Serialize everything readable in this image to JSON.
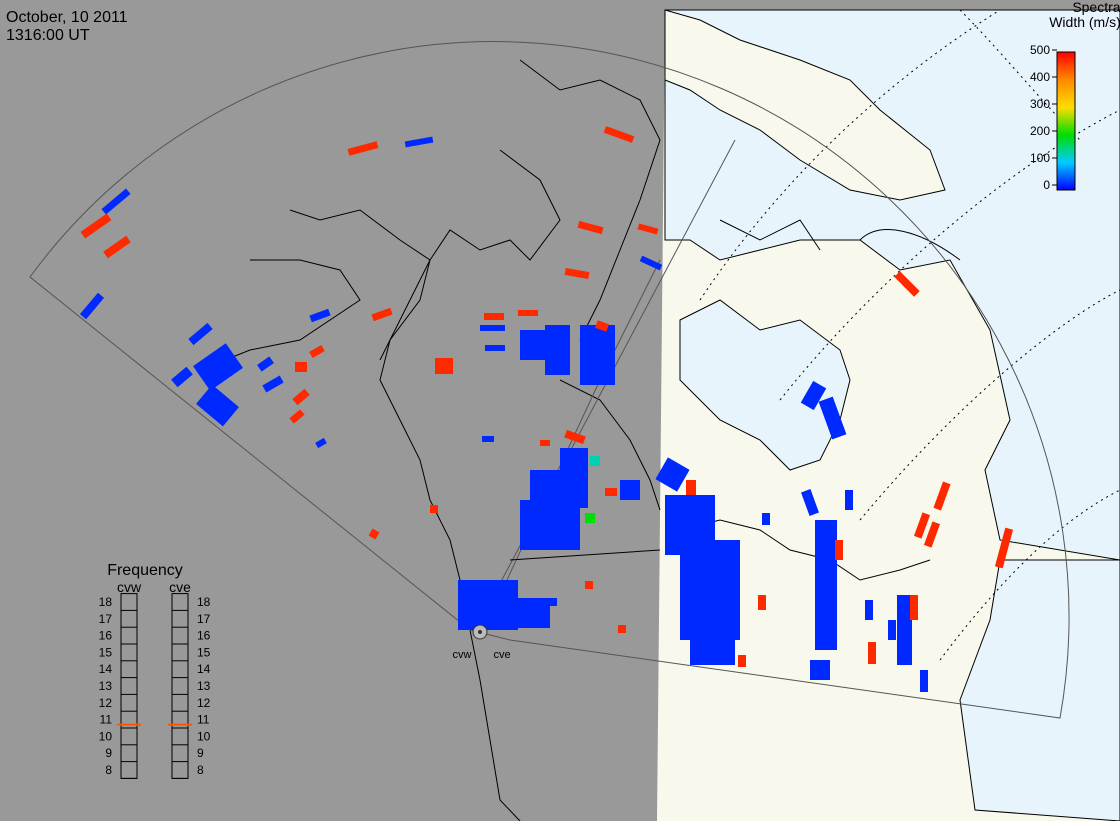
{
  "header": {
    "date": "October, 10 2011",
    "time": "1316:00 UT"
  },
  "colorbar": {
    "title": [
      "Spectral",
      "Width (m/s)"
    ],
    "range": [
      0,
      500
    ],
    "ticks": [
      0,
      100,
      200,
      300,
      400,
      500
    ]
  },
  "frequency": {
    "title": "Frequency",
    "range": [
      8,
      18
    ],
    "ticks": [
      8,
      9,
      10,
      11,
      12,
      13,
      14,
      15,
      16,
      17,
      18
    ],
    "radars": [
      {
        "name": "cvw",
        "value": 10.7
      },
      {
        "name": "cve",
        "value": 10.7
      }
    ]
  },
  "radar_labels": [
    "cvw",
    "cve"
  ],
  "cells": [
    470,
    20,
    20,
    470,
    470,
    20,
    470,
    470,
    470,
    470,
    20,
    470,
    20,
    20,
    20,
    20,
    20,
    20,
    20,
    470,
    470,
    470,
    470,
    20,
    470,
    470,
    20,
    20,
    470,
    20,
    20,
    20,
    470,
    20,
    470,
    20,
    20,
    20,
    470,
    130,
    470,
    200,
    20,
    20,
    20,
    20,
    20,
    470,
    20,
    20,
    470,
    20,
    20,
    20,
    470,
    20,
    470,
    20,
    470,
    20,
    20,
    470,
    470,
    470,
    470,
    20,
    470,
    20,
    20,
    470,
    470,
    470,
    470,
    470,
    20,
    20
  ]
}
